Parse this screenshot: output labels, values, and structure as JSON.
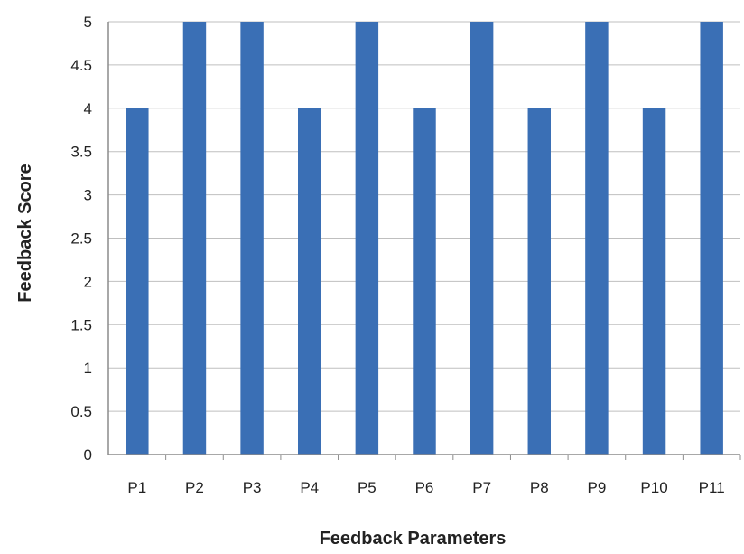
{
  "chart_data": {
    "type": "bar",
    "title": "",
    "xlabel": "Feedback Parameters",
    "ylabel": "Feedback Score",
    "categories": [
      "P1",
      "P2",
      "P3",
      "P4",
      "P5",
      "P6",
      "P7",
      "P8",
      "P9",
      "P10",
      "P11"
    ],
    "values": [
      4,
      5,
      5,
      4,
      5,
      4,
      5,
      4,
      5,
      4,
      5
    ],
    "ylim": [
      0,
      5
    ],
    "yticks": [
      "0",
      "0.5",
      "1",
      "1.5",
      "2",
      "2.5",
      "3",
      "3.5",
      "4",
      "4.5",
      "5"
    ],
    "grid": true,
    "legend": "none",
    "colors": {
      "bar": "#3a6fb5",
      "grid": "#bfbfbf",
      "axis": "#8c8c8c",
      "text": "#222222"
    }
  }
}
